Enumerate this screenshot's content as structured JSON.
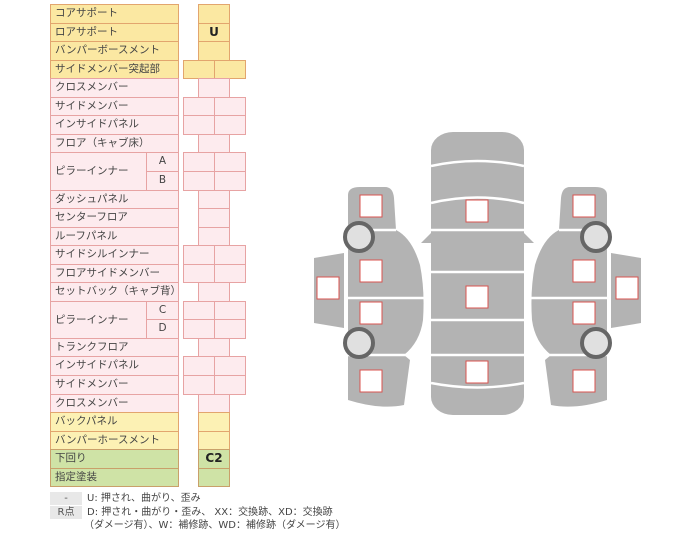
{
  "colors": {
    "yellow": {
      "bg": "#fbe8a2",
      "border": "#e2a56e"
    },
    "yellow_light": {
      "bg": "#fcf1b4",
      "border": "#e2a56e"
    },
    "pink": {
      "bg": "#fdebee",
      "border": "#e7a3a3"
    },
    "green": {
      "bg": "#cfe3a6",
      "border": "#c9a06a"
    },
    "car_gray": "#b3b3b3",
    "marker_border": "#d9534f"
  },
  "rows": [
    {
      "label": "コアサポート",
      "color": "yellow",
      "cells": "single",
      "value": ""
    },
    {
      "label": "ロアサポート",
      "color": "yellow",
      "cells": "single",
      "value": "U"
    },
    {
      "label": "バンパーボースメント",
      "color": "yellow",
      "cells": "single",
      "value": ""
    },
    {
      "label": "サイドメンバー突起部",
      "color": "yellow",
      "cells": "double",
      "value": ""
    },
    {
      "label": "クロスメンバー",
      "color": "pink",
      "cells": "single",
      "value": ""
    },
    {
      "label": "サイドメンバー",
      "color": "pink",
      "cells": "double",
      "value": ""
    },
    {
      "label": "インサイドパネル",
      "color": "pink",
      "cells": "double",
      "value": ""
    },
    {
      "label": "フロア（キャブ床）",
      "color": "pink",
      "cells": "single",
      "value": ""
    },
    {
      "label": "ピラーインナー",
      "sub": "A",
      "color": "pink",
      "cells": "double",
      "value": ""
    },
    {
      "label": "",
      "sub": "B",
      "color": "pink",
      "cells": "double",
      "value": ""
    },
    {
      "label": "ダッシュパネル",
      "color": "pink",
      "cells": "single",
      "value": ""
    },
    {
      "label": "センターフロア",
      "color": "pink",
      "cells": "single",
      "value": ""
    },
    {
      "label": "ルーフパネル",
      "color": "pink",
      "cells": "single",
      "value": ""
    },
    {
      "label": "サイドシルインナー",
      "color": "pink",
      "cells": "double",
      "value": ""
    },
    {
      "label": "フロアサイドメンバー",
      "color": "pink",
      "cells": "double",
      "value": ""
    },
    {
      "label": "セットバック（キャブ背）",
      "color": "pink",
      "cells": "single",
      "value": ""
    },
    {
      "label": "ピラーインナー",
      "sub": "C",
      "color": "pink",
      "cells": "double",
      "value": ""
    },
    {
      "label": "",
      "sub": "D",
      "color": "pink",
      "cells": "double",
      "value": ""
    },
    {
      "label": "トランクフロア",
      "color": "pink",
      "cells": "single",
      "value": ""
    },
    {
      "label": "インサイドパネル",
      "color": "pink",
      "cells": "double",
      "value": ""
    },
    {
      "label": "サイドメンバー",
      "color": "pink",
      "cells": "double",
      "value": ""
    },
    {
      "label": "クロスメンバー",
      "color": "pink",
      "cells": "single",
      "value": ""
    },
    {
      "label": "バックパネル",
      "color": "yellow_light",
      "cells": "single",
      "value": ""
    },
    {
      "label": "バンパーホースメント",
      "color": "yellow_light",
      "cells": "single",
      "value": ""
    },
    {
      "label": "下回り",
      "color": "green",
      "cells": "single",
      "value": "C2"
    },
    {
      "label": "指定塗装",
      "color": "green",
      "cells": "single",
      "value": ""
    }
  ],
  "legend": {
    "key1": "-",
    "text1": "U: 押され、曲がり、歪み",
    "key2": "R点",
    "text2": "D: 押され・曲がり・歪み、 XX：交換跡、XD：交換跡",
    "text3": "（ダメージ有）、W：補修跡、WD：補修跡（ダメージ有）"
  }
}
